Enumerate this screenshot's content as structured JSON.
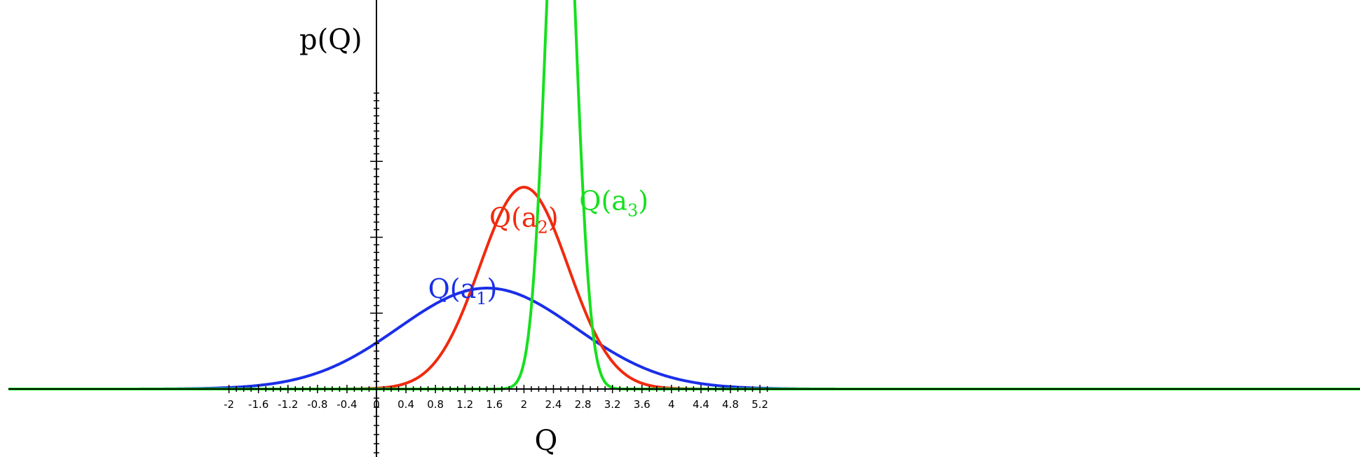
{
  "chart_data": {
    "type": "line",
    "title": "",
    "xlabel": "Q",
    "ylabel": "p(Q)",
    "xlim": [
      -2.0,
      5.3
    ],
    "ylim": [
      0,
      0.98
    ],
    "grid": false,
    "x_ticks": [
      -2,
      -1.6,
      -1.2,
      -0.8,
      -0.4,
      0,
      0.4,
      0.8,
      1.2,
      1.6,
      2,
      2.4,
      2.8,
      3.2,
      3.6,
      4,
      4.4,
      4.8,
      5.2
    ],
    "x_tick_labels": [
      "-2",
      "-1.6",
      "-1.2",
      "-0.8",
      "-0.4",
      "0",
      "0.4",
      "0.8",
      "1.2",
      "1.6",
      "2",
      "2.4",
      "2.8",
      "3.2",
      "3.6",
      "4",
      "4.4",
      "4.8",
      "5.2"
    ],
    "series": [
      {
        "name": "Q(a1)",
        "label_main": "Q(a",
        "label_sub": "1",
        "label_close": ")",
        "color": "#1a2fe8",
        "mean": 1.5,
        "sd": 1.2,
        "label_x": 0.7,
        "label_y": 0.3
      },
      {
        "name": "Q(a2)",
        "label_main": "Q(a",
        "label_sub": "2",
        "label_close": ")",
        "color": "#f02a0e",
        "mean": 2.0,
        "sd": 0.6,
        "label_x": 1.53,
        "label_y": 0.535
      },
      {
        "name": "Q(a3)",
        "label_main": "Q(a",
        "label_sub": "3",
        "label_close": ")",
        "color": "#16e01e",
        "mean": 2.5,
        "sd": 0.2,
        "label_x": 2.75,
        "label_y": 0.59
      }
    ]
  }
}
